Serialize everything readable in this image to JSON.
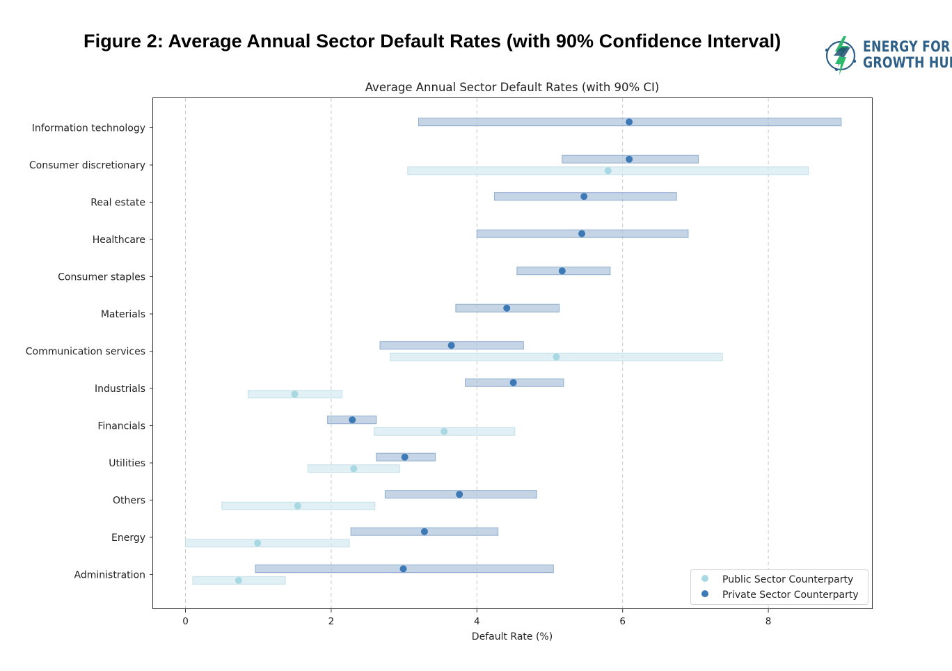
{
  "header": {
    "figure_title": "Figure 2: Average Annual Sector Default Rates (with 90% Confidence Interval)",
    "logo_line1": "ENERGY FOR",
    "logo_line2": "GROWTH HUB"
  },
  "colors": {
    "public_point": "#a8d8e2",
    "public_bar": "#d7ebf1",
    "private_point": "#3d79b5",
    "private_bar": "#a7bfd9",
    "logo_text": "#2e5f86"
  },
  "chart_data": {
    "type": "scatter",
    "title": "Average Annual Sector Default Rates (with 90% CI)",
    "xlabel": "Default Rate (%)",
    "ylabel": "",
    "xlim": [
      -0.45,
      9.4
    ],
    "xticks": [
      0,
      2,
      4,
      6,
      8
    ],
    "grid": "vertical dashed",
    "legend_position": "lower-right",
    "categories": [
      "Information technology",
      "Consumer discretionary",
      "Real estate",
      "Healthcare",
      "Consumer staples",
      "Materials",
      "Communication services",
      "Industrials",
      "Financials",
      "Utilities",
      "Others",
      "Energy",
      "Administration"
    ],
    "series": [
      {
        "name": "Public Sector Counterparty",
        "points": [
          null,
          {
            "mean": 5.8,
            "low": 3.05,
            "high": 8.55
          },
          null,
          null,
          null,
          null,
          {
            "mean": 5.09,
            "low": 2.81,
            "high": 7.37
          },
          {
            "mean": 1.5,
            "low": 0.86,
            "high": 2.15
          },
          {
            "mean": 3.55,
            "low": 2.59,
            "high": 4.52
          },
          {
            "mean": 2.31,
            "low": 1.68,
            "high": 2.94
          },
          {
            "mean": 1.54,
            "low": 0.5,
            "high": 2.6
          },
          {
            "mean": 0.99,
            "low": 0.0,
            "high": 2.25
          },
          {
            "mean": 0.73,
            "low": 0.1,
            "high": 1.37
          }
        ]
      },
      {
        "name": "Private Sector Counterparty",
        "points": [
          {
            "mean": 6.09,
            "low": 3.2,
            "high": 9.0
          },
          {
            "mean": 6.09,
            "low": 5.17,
            "high": 7.04
          },
          {
            "mean": 5.47,
            "low": 4.24,
            "high": 6.74
          },
          {
            "mean": 5.44,
            "low": 4.0,
            "high": 6.9
          },
          {
            "mean": 5.17,
            "low": 4.55,
            "high": 5.83
          },
          {
            "mean": 4.41,
            "low": 3.71,
            "high": 5.13
          },
          {
            "mean": 3.65,
            "low": 2.67,
            "high": 4.64
          },
          {
            "mean": 4.5,
            "low": 3.84,
            "high": 5.19
          },
          {
            "mean": 2.29,
            "low": 1.95,
            "high": 2.62
          },
          {
            "mean": 3.01,
            "low": 2.62,
            "high": 3.43
          },
          {
            "mean": 3.76,
            "low": 2.74,
            "high": 4.82
          },
          {
            "mean": 3.28,
            "low": 2.27,
            "high": 4.29
          },
          {
            "mean": 2.99,
            "low": 0.96,
            "high": 5.05
          }
        ]
      }
    ]
  }
}
